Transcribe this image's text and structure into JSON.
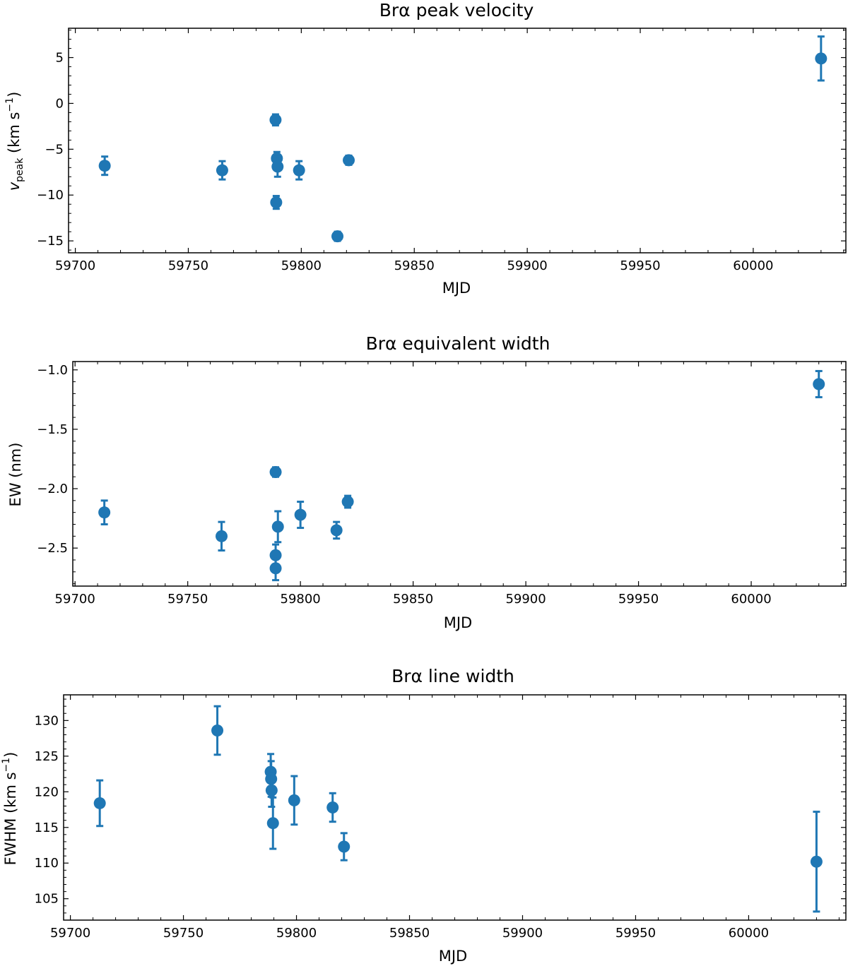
{
  "chart_data": [
    {
      "type": "scatter",
      "title": "Brα peak velocity",
      "xlabel": "MJD",
      "ylabel": {
        "main": "v",
        "sub": "peak",
        "rest": " (km s",
        "sup": "−1",
        "close": ")"
      },
      "xlim": [
        59697,
        60041
      ],
      "ylim": [
        -16.3,
        8.2
      ],
      "xticks": [
        59700,
        59750,
        59800,
        59850,
        59900,
        59950,
        60000
      ],
      "xtick_labels": [
        "59700",
        "59750",
        "59800",
        "59850",
        "59900",
        "59950",
        "60000"
      ],
      "yticks": [
        -15,
        -10,
        -5,
        0,
        5
      ],
      "ytick_labels": [
        "−15",
        "−10",
        "−5",
        "0",
        "5"
      ],
      "grid": false,
      "marker_color": "#1f77b4",
      "series": [
        {
          "x": [
            59713,
            59765,
            59788.6,
            59788.9,
            59789.2,
            59789.5,
            59799,
            59816,
            59821,
            60030
          ],
          "y": [
            -6.8,
            -7.3,
            -1.8,
            -10.8,
            -6.0,
            -6.9,
            -7.3,
            -14.5,
            -6.2,
            4.9
          ],
          "yerr": [
            1.0,
            1.0,
            0.6,
            0.7,
            0.7,
            1.1,
            1.0,
            0.5,
            0.5,
            2.4
          ]
        }
      ]
    },
    {
      "type": "scatter",
      "title": "Brα equivalent width",
      "xlabel": "MJD",
      "ylabel": {
        "main": "EW (nm)",
        "sub": "",
        "rest": "",
        "sup": "",
        "close": ""
      },
      "xlim": [
        59699,
        60042
      ],
      "ylim": [
        -2.82,
        -0.93
      ],
      "xticks": [
        59700,
        59750,
        59800,
        59850,
        59900,
        59950,
        60000
      ],
      "xtick_labels": [
        "59700",
        "59750",
        "59800",
        "59850",
        "59900",
        "59950",
        "60000"
      ],
      "yticks": [
        -2.5,
        -2.0,
        -1.5,
        -1.0
      ],
      "ytick_labels": [
        "−2.5",
        "−2.0",
        "−1.5",
        "−1.0"
      ],
      "grid": false,
      "marker_color": "#1f77b4",
      "series": [
        {
          "x": [
            59713,
            59765,
            59789,
            59789,
            59789,
            59790,
            59800,
            59816,
            59821,
            60030
          ],
          "y": [
            -2.2,
            -2.4,
            -1.86,
            -2.56,
            -2.67,
            -2.32,
            -2.22,
            -2.35,
            -2.11,
            -1.12
          ],
          "yerr": [
            0.1,
            0.12,
            0.04,
            0.09,
            0.1,
            0.13,
            0.11,
            0.07,
            0.05,
            0.11
          ]
        }
      ]
    },
    {
      "type": "scatter",
      "title": "Brα line width",
      "xlabel": "MJD",
      "ylabel": {
        "main": "FWHM (km s",
        "sub": "",
        "rest": "",
        "sup": "−1",
        "close": ")"
      },
      "xlim": [
        59697,
        60043
      ],
      "ylim": [
        102.0,
        133.6
      ],
      "xticks": [
        59700,
        59750,
        59800,
        59850,
        59900,
        59950,
        60000
      ],
      "xtick_labels": [
        "59700",
        "59750",
        "59800",
        "59850",
        "59900",
        "59950",
        "60000"
      ],
      "yticks": [
        105,
        110,
        115,
        120,
        125,
        130
      ],
      "ytick_labels": [
        "105",
        "110",
        "115",
        "120",
        "125",
        "130"
      ],
      "grid": false,
      "marker_color": "#1f77b4",
      "series": [
        {
          "x": [
            59713,
            59765,
            59788.6,
            59788.8,
            59789.0,
            59789.6,
            59799,
            59816,
            59821,
            60030
          ],
          "y": [
            118.4,
            128.6,
            122.8,
            121.8,
            120.2,
            115.6,
            118.8,
            117.8,
            112.3,
            110.2
          ],
          "yerr": [
            3.2,
            3.4,
            2.5,
            2.5,
            2.3,
            3.6,
            3.4,
            2.0,
            1.9,
            7.0
          ]
        }
      ]
    }
  ]
}
